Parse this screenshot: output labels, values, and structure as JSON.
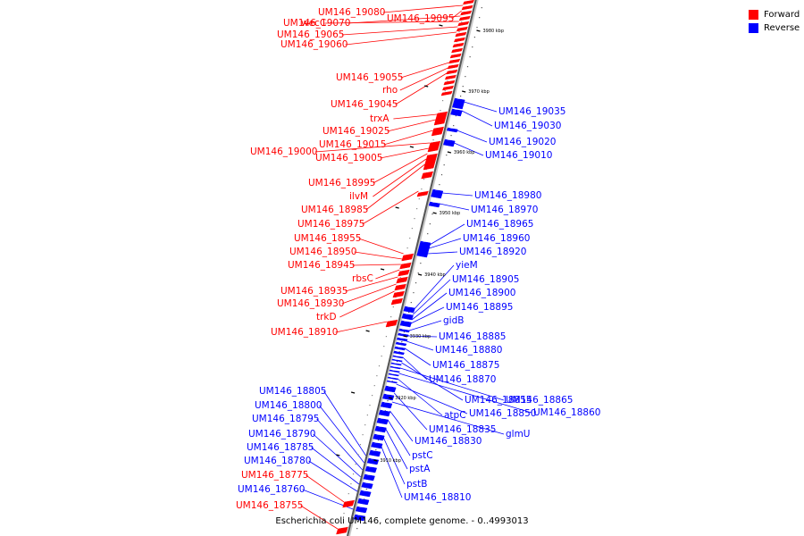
{
  "caption": "Escherichia coli UM146, complete genome. - 0..4993013",
  "legend": [
    {
      "label": "Forward",
      "color": "#ff0000"
    },
    {
      "label": "Reverse",
      "color": "#0000ff"
    }
  ],
  "colors": {
    "forward": "#ff0000",
    "reverse": "#0000ff",
    "backbone": "#555555"
  },
  "ticks": [
    "3980 kbp",
    "3970 kbp",
    "3960 kbp",
    "3950 kbp",
    "3940 kbp",
    "3930 kbp",
    "3920 kbp",
    "3910 kbp"
  ],
  "forward_labels": [
    "UM146_19080",
    "UM146_19095",
    "UM146_19070",
    "wecC",
    "UM146_19065",
    "UM146_19060",
    "UM146_19055",
    "rho",
    "UM146_19045",
    "trxA",
    "UM146_19025",
    "UM146_19015",
    "UM146_19000",
    "UM146_19005",
    "UM146_18995",
    "ilvM",
    "UM146_18985",
    "UM146_18975",
    "UM146_18955",
    "UM146_18950",
    "UM146_18945",
    "rbsC",
    "UM146_18935",
    "UM146_18930",
    "trkD",
    "UM146_18910",
    "UM146_18775",
    "UM146_18755"
  ],
  "reverse_labels": [
    "UM146_19035",
    "UM146_19030",
    "UM146_19020",
    "UM146_19010",
    "UM146_18980",
    "UM146_18970",
    "UM146_18965",
    "UM146_18960",
    "UM146_18920",
    "yieM",
    "UM146_18905",
    "UM146_18900",
    "UM146_18895",
    "gidB",
    "UM146_18885",
    "UM146_18880",
    "UM146_18875",
    "UM146_18870",
    "UM146_18855",
    "UM146_18865",
    "UM146_18860",
    "atpC",
    "UM146_18850",
    "UM146_18835",
    "glmU",
    "UM146_18830",
    "pstC",
    "pstA",
    "pstB",
    "UM146_18810",
    "UM146_18805",
    "UM146_18800",
    "UM146_18795",
    "UM146_18790",
    "UM146_18785",
    "UM146_18780",
    "UM146_18760"
  ]
}
